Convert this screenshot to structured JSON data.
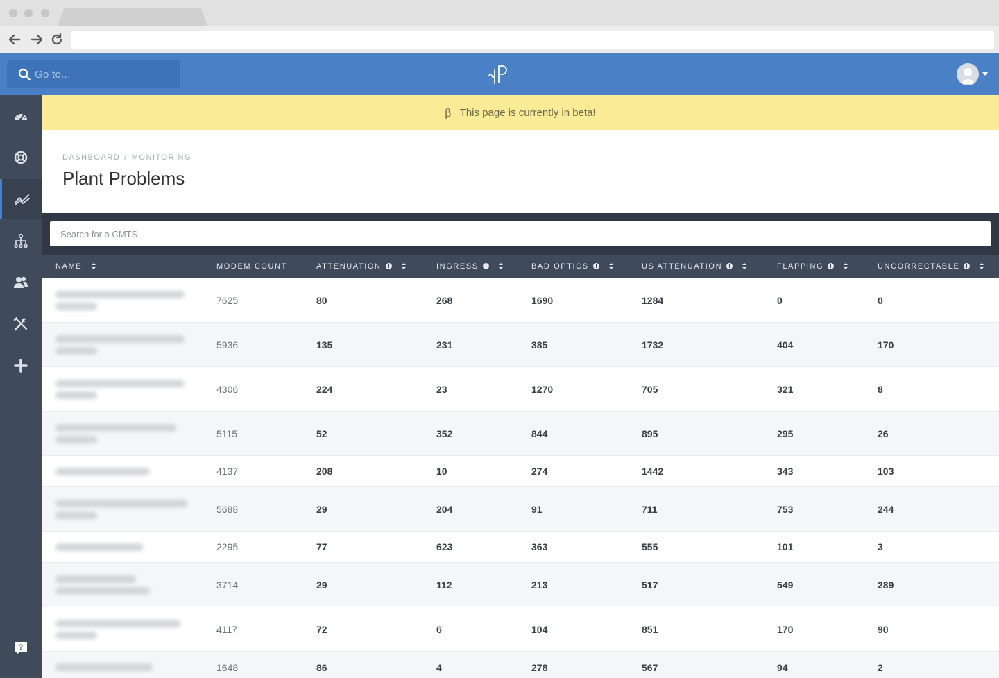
{
  "search": {
    "placeholder": "Go to..."
  },
  "banner": {
    "icon": "β",
    "text": "This page is currently in beta!"
  },
  "breadcrumb": {
    "items": [
      "DASHBOARD",
      "MONITORING"
    ],
    "separator": "/"
  },
  "page": {
    "title": "Plant Problems"
  },
  "cmts_search": {
    "placeholder": "Search for a CMTS"
  },
  "sidebar": {
    "items": [
      {
        "icon": "dashboard-gauge-icon"
      },
      {
        "icon": "life-ring-icon"
      },
      {
        "icon": "monitoring-chart-icon",
        "active": true
      },
      {
        "icon": "network-topology-icon"
      },
      {
        "icon": "users-icon"
      },
      {
        "icon": "tools-icon"
      },
      {
        "icon": "plus-icon"
      }
    ],
    "help_icon": "help-chat-icon"
  },
  "colors": {
    "topbar": "#4a80c5",
    "sidebar": "#3f4a5b",
    "banner": "#faec96",
    "table_header": "#3f4a5b"
  },
  "table": {
    "columns": [
      {
        "label": "NAME",
        "info": false,
        "sortable": true
      },
      {
        "label": "MODEM COUNT",
        "info": false,
        "sortable": false
      },
      {
        "label": "ATTENUATION",
        "info": true,
        "sortable": true
      },
      {
        "label": "INGRESS",
        "info": true,
        "sortable": true
      },
      {
        "label": "BAD OPTICS",
        "info": true,
        "sortable": true
      },
      {
        "label": "US ATTENUATION",
        "info": true,
        "sortable": true
      },
      {
        "label": "FLAPPING",
        "info": true,
        "sortable": true
      },
      {
        "label": "UNCORRECTABLE",
        "info": true,
        "sortable": true
      }
    ],
    "rows": [
      {
        "modem_count": "7625",
        "attenuation": "80",
        "ingress": "268",
        "bad_optics": "1690",
        "us_attenuation": "1284",
        "flapping": "0",
        "uncorrectable": "0"
      },
      {
        "modem_count": "5936",
        "attenuation": "135",
        "ingress": "231",
        "bad_optics": "385",
        "us_attenuation": "1732",
        "flapping": "404",
        "uncorrectable": "170"
      },
      {
        "modem_count": "4306",
        "attenuation": "224",
        "ingress": "23",
        "bad_optics": "1270",
        "us_attenuation": "705",
        "flapping": "321",
        "uncorrectable": "8"
      },
      {
        "modem_count": "5115",
        "attenuation": "52",
        "ingress": "352",
        "bad_optics": "844",
        "us_attenuation": "895",
        "flapping": "295",
        "uncorrectable": "26"
      },
      {
        "modem_count": "4137",
        "attenuation": "208",
        "ingress": "10",
        "bad_optics": "274",
        "us_attenuation": "1442",
        "flapping": "343",
        "uncorrectable": "103"
      },
      {
        "modem_count": "5688",
        "attenuation": "29",
        "ingress": "204",
        "bad_optics": "91",
        "us_attenuation": "711",
        "flapping": "753",
        "uncorrectable": "244"
      },
      {
        "modem_count": "2295",
        "attenuation": "77",
        "ingress": "623",
        "bad_optics": "363",
        "us_attenuation": "555",
        "flapping": "101",
        "uncorrectable": "3"
      },
      {
        "modem_count": "3714",
        "attenuation": "29",
        "ingress": "112",
        "bad_optics": "213",
        "us_attenuation": "517",
        "flapping": "549",
        "uncorrectable": "289"
      },
      {
        "modem_count": "4117",
        "attenuation": "72",
        "ingress": "6",
        "bad_optics": "104",
        "us_attenuation": "851",
        "flapping": "170",
        "uncorrectable": "90"
      },
      {
        "modem_count": "1648",
        "attenuation": "86",
        "ingress": "4",
        "bad_optics": "278",
        "us_attenuation": "567",
        "flapping": "94",
        "uncorrectable": "2"
      }
    ]
  }
}
